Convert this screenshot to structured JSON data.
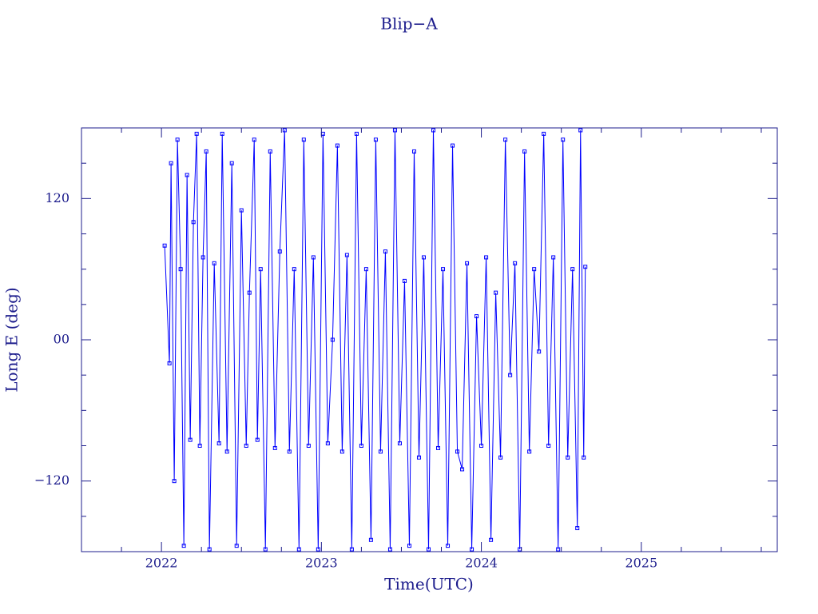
{
  "chart_data": {
    "type": "line",
    "title": "Blip−A",
    "xlabel": "Time(UTC)",
    "ylabel": "Long E (deg)",
    "color": "#0000ff",
    "xlim": [
      2021.5,
      2025.85
    ],
    "ylim": [
      -180,
      180
    ],
    "xticks": [
      2022,
      2023,
      2024,
      2025
    ],
    "xticks_minor": [
      2021.75,
      2022.25,
      2022.5,
      2022.75,
      2023.25,
      2023.5,
      2023.75,
      2024.25,
      2024.5,
      2024.75,
      2025.25,
      2025.5,
      2025.75
    ],
    "yticks": [
      {
        "value": -120,
        "label": "−120"
      },
      {
        "value": 0,
        "label": "00"
      },
      {
        "value": 120,
        "label": "120"
      }
    ],
    "yticks_minor": [
      -150,
      -90,
      -60,
      -30,
      30,
      60,
      90,
      150
    ],
    "x": [
      2022.02,
      2022.05,
      2022.06,
      2022.08,
      2022.1,
      2022.12,
      2022.14,
      2022.16,
      2022.18,
      2022.2,
      2022.22,
      2022.24,
      2022.26,
      2022.28,
      2022.3,
      2022.33,
      2022.36,
      2022.38,
      2022.41,
      2022.44,
      2022.47,
      2022.5,
      2022.53,
      2022.55,
      2022.58,
      2022.6,
      2022.62,
      2022.65,
      2022.68,
      2022.71,
      2022.74,
      2022.77,
      2022.8,
      2022.83,
      2022.86,
      2022.89,
      2022.92,
      2022.95,
      2022.98,
      2023.01,
      2023.04,
      2023.07,
      2023.1,
      2023.13,
      2023.16,
      2023.19,
      2023.22,
      2023.25,
      2023.28,
      2023.31,
      2023.34,
      2023.37,
      2023.4,
      2023.43,
      2023.46,
      2023.49,
      2023.52,
      2023.55,
      2023.58,
      2023.61,
      2023.64,
      2023.67,
      2023.7,
      2023.73,
      2023.76,
      2023.79,
      2023.82,
      2023.85,
      2023.88,
      2023.91,
      2023.94,
      2023.97,
      2024.0,
      2024.03,
      2024.06,
      2024.09,
      2024.12,
      2024.15,
      2024.18,
      2024.21,
      2024.24,
      2024.27,
      2024.3,
      2024.33,
      2024.36,
      2024.39,
      2024.42,
      2024.45,
      2024.48,
      2024.51,
      2024.54,
      2024.57,
      2024.6,
      2024.62,
      2024.64,
      2024.65
    ],
    "values": [
      80,
      -20,
      150,
      -120,
      170,
      60,
      -175,
      140,
      -85,
      100,
      175,
      -90,
      70,
      160,
      -178,
      65,
      -88,
      175,
      -95,
      150,
      -175,
      110,
      -90,
      40,
      170,
      -85,
      60,
      -178,
      160,
      -92,
      75,
      178,
      -95,
      60,
      -178,
      170,
      -90,
      70,
      -178,
      175,
      -88,
      0,
      165,
      -95,
      72,
      -178,
      175,
      -90,
      60,
      -170,
      170,
      -95,
      75,
      -178,
      178,
      -88,
      50,
      -175,
      160,
      -100,
      70,
      -178,
      178,
      -92,
      60,
      -175,
      165,
      -95,
      -110,
      65,
      -178,
      20,
      -90,
      70,
      -170,
      40,
      -100,
      170,
      -30,
      65,
      -178,
      160,
      -95,
      60,
      -10,
      175,
      -90,
      70,
      -178,
      170,
      -100,
      60,
      -160,
      178,
      -100,
      62
    ]
  }
}
